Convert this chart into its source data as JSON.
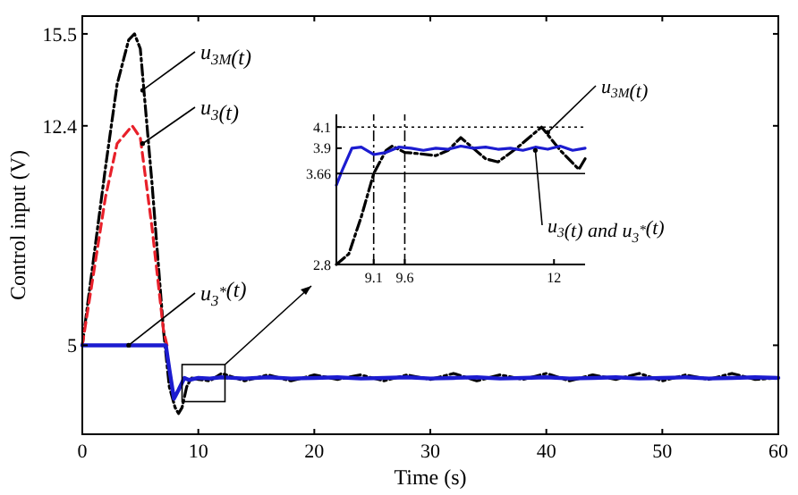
{
  "chart_data": [
    {
      "type": "line",
      "xlabel": "Time (s)",
      "ylabel": "Control input (V)",
      "xlim": [
        0,
        60
      ],
      "ylim": [
        2,
        16.1
      ],
      "xticks": [
        0,
        10,
        20,
        30,
        40,
        50,
        60
      ],
      "yticks": [
        5,
        12.4,
        15.5
      ],
      "grid": false,
      "series": [
        {
          "color": "#000000",
          "line_style": "dashdot",
          "x": [
            0,
            1,
            2,
            3,
            4,
            4.5,
            5,
            6,
            7,
            7.5,
            8,
            8.3,
            8.6,
            9,
            9.4,
            10,
            11,
            12,
            14,
            16,
            18,
            20,
            22,
            24,
            26,
            28,
            30,
            32,
            34,
            36,
            38,
            40,
            42,
            44,
            46,
            48,
            50,
            52,
            54,
            56,
            58,
            60
          ],
          "values": [
            5,
            8,
            11,
            13.8,
            15.3,
            15.5,
            15,
            10.5,
            5.5,
            3.6,
            2.9,
            2.7,
            2.9,
            3.6,
            3.9,
            3.85,
            3.8,
            4.05,
            3.8,
            4,
            3.8,
            4,
            3.85,
            4,
            3.8,
            4,
            3.85,
            4.05,
            3.8,
            4,
            3.85,
            4.05,
            3.8,
            4,
            3.85,
            4.05,
            3.8,
            4,
            3.85,
            4.05,
            3.85,
            3.9
          ]
        },
        {
          "color": "#e8202a",
          "line_style": "dashed",
          "x": [
            0,
            1,
            2,
            3,
            4.3,
            5,
            6,
            7,
            7.3
          ],
          "values": [
            5,
            7.5,
            10,
            11.8,
            12.4,
            12,
            9,
            5.5,
            5
          ]
        },
        {
          "color": "#1c1cd0",
          "line_style": "solid",
          "x": [
            0,
            7.2,
            7.5,
            7.9,
            8.3,
            8.8,
            9.2,
            10,
            11,
            12,
            14,
            16,
            18,
            20,
            22,
            24,
            26,
            28,
            30,
            32,
            34,
            36,
            38,
            40,
            42,
            44,
            46,
            48,
            50,
            52,
            54,
            56,
            58,
            60
          ],
          "values": [
            5,
            5,
            4.2,
            3.2,
            3.5,
            3.9,
            3.83,
            3.9,
            3.88,
            3.92,
            3.88,
            3.92,
            3.88,
            3.9,
            3.92,
            3.88,
            3.9,
            3.92,
            3.88,
            3.9,
            3.92,
            3.88,
            3.9,
            3.92,
            3.88,
            3.9,
            3.92,
            3.88,
            3.9,
            3.92,
            3.88,
            3.9,
            3.92,
            3.9
          ]
        }
      ],
      "annotations": [
        {
          "text": "u$_{3M}$(t)",
          "x": 5.2,
          "y": 13.6
        },
        {
          "text": "u$_{3}$(t)",
          "x": 5.2,
          "y": 11.8
        },
        {
          "text": "u$_{3}$$^{*}$(t)",
          "x": 4,
          "y": 5
        }
      ]
    },
    {
      "type": "line",
      "xlim": [
        8.5,
        12.5
      ],
      "ylim": [
        2.8,
        4.22
      ],
      "xticks": [
        9.1,
        9.6,
        12
      ],
      "yticks": [
        2.8,
        3.66,
        3.9,
        4.1
      ],
      "grid": false,
      "series": [
        {
          "color": "#000000",
          "line_style": "dashdot",
          "x": [
            8.5,
            8.7,
            8.9,
            9.1,
            9.3,
            9.4,
            9.6,
            9.8,
            10.1,
            10.3,
            10.5,
            10.7,
            10.9,
            11.1,
            11.4,
            11.6,
            11.8,
            12.1,
            12.4,
            12.5
          ],
          "values": [
            2.8,
            2.9,
            3.25,
            3.66,
            3.88,
            3.92,
            3.86,
            3.85,
            3.83,
            3.88,
            4,
            3.9,
            3.8,
            3.77,
            3.9,
            4,
            4.1,
            3.88,
            3.7,
            3.8
          ]
        },
        {
          "color": "#1c1cd0",
          "line_style": "solid",
          "x": [
            8.5,
            8.6,
            8.75,
            8.9,
            9.1,
            9.3,
            9.5,
            9.7,
            9.9,
            10.1,
            10.3,
            10.5,
            10.7,
            10.9,
            11.1,
            11.3,
            11.5,
            11.7,
            11.9,
            12.1,
            12.3,
            12.5
          ],
          "values": [
            3.55,
            3.7,
            3.9,
            3.91,
            3.84,
            3.86,
            3.91,
            3.9,
            3.88,
            3.9,
            3.89,
            3.92,
            3.9,
            3.91,
            3.89,
            3.9,
            3.88,
            3.91,
            3.89,
            3.92,
            3.88,
            3.9
          ]
        }
      ],
      "ref_lines": [
        {
          "axis": "y",
          "value": 4.1,
          "line_style": "dotted"
        },
        {
          "axis": "y",
          "value": 3.66,
          "line_style": "solid"
        },
        {
          "axis": "x",
          "value": 9.1,
          "line_style": "dashdot"
        },
        {
          "axis": "x",
          "value": 9.6,
          "line_style": "dashdot"
        }
      ],
      "annotations": [
        {
          "text": "u$_{3M}$(t)",
          "x": 11.9,
          "y": 4.05
        },
        {
          "text": "u$_{3}$(t) and u$_{3}$$^{*}$(t)",
          "x": 11.7,
          "y": 3.88
        }
      ]
    }
  ]
}
